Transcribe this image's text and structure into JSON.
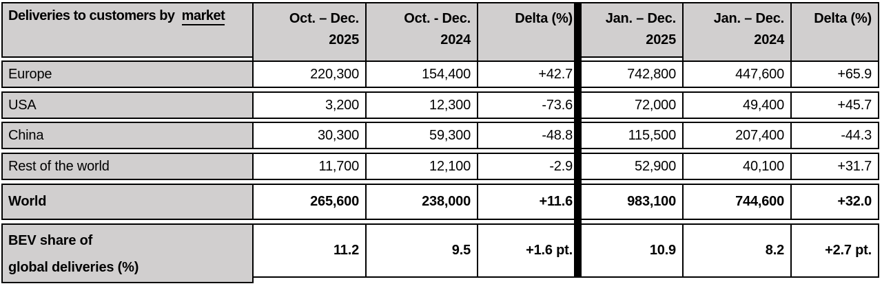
{
  "table": {
    "title": {
      "prefix": "Deliveries to customers by  ",
      "underlined": "market"
    },
    "col_headers": [
      {
        "l1": "Oct. – Dec.",
        "l2": "2025"
      },
      {
        "l1": "Oct. - Dec.",
        "l2": "2024"
      },
      {
        "l1": "Delta (%)",
        "l2": ""
      },
      {
        "l1": "Jan. – Dec.",
        "l2": "2025"
      },
      {
        "l1": "Jan. – Dec.",
        "l2": "2024"
      },
      {
        "l1": "Delta (%)",
        "l2": ""
      }
    ],
    "rows": [
      {
        "label": "Europe",
        "values": [
          "220,300",
          "154,400",
          "+42.7",
          "742,800",
          "447,600",
          "+65.9"
        ]
      },
      {
        "label": "USA",
        "values": [
          "3,200",
          "12,300",
          "-73.6",
          "72,000",
          "49,400",
          "+45.7"
        ]
      },
      {
        "label": "China",
        "values": [
          "30,300",
          "59,300",
          "-48.8",
          "115,500",
          "207,400",
          "-44.3"
        ]
      },
      {
        "label": "Rest of the world",
        "values": [
          "11,700",
          "12,100",
          "-2.9",
          "52,900",
          "40,100",
          "+31.7"
        ]
      },
      {
        "label": "World",
        "values": [
          "265,600",
          "238,000",
          "+11.6",
          "983,100",
          "744,600",
          "+32.0"
        ]
      },
      {
        "label_line1": "BEV share of",
        "label_line2": "global deliveries (%)",
        "values": [
          "11.2",
          "9.5",
          "+1.6 pt.",
          "10.9",
          "8.2",
          "+2.7 pt."
        ]
      }
    ],
    "colors": {
      "header_bg": "#d1cfcf",
      "cell_bg": "#ffffff",
      "border": "#000000"
    }
  }
}
